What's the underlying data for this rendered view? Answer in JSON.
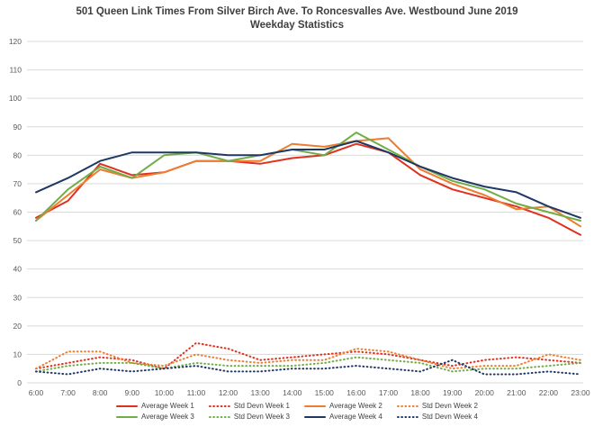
{
  "chart_data": {
    "type": "line",
    "title": "501 Queen Link Times From Silver Birch Ave. To Roncesvalles Ave. Westbound June 2019",
    "subtitle": "Weekday Statistics",
    "xlabel": "",
    "ylabel": "",
    "ylim": [
      0,
      120
    ],
    "ytick_step": 10,
    "grid": true,
    "legend_position": "bottom",
    "categories": [
      "6:00",
      "7:00",
      "8:00",
      "9:00",
      "10:00",
      "11:00",
      "12:00",
      "13:00",
      "14:00",
      "15:00",
      "16:00",
      "17:00",
      "18:00",
      "19:00",
      "20:00",
      "21:00",
      "22:00",
      "23:00"
    ],
    "series": [
      {
        "name": "Average Week 1",
        "color": "#e0301e",
        "style": "solid",
        "values": [
          58,
          64,
          77,
          73,
          74,
          78,
          78,
          77,
          79,
          80,
          84,
          81,
          73,
          68,
          65,
          62,
          58,
          52
        ]
      },
      {
        "name": "Std Devn Week 1",
        "color": "#e0301e",
        "style": "dotted",
        "values": [
          5,
          7,
          9,
          8,
          5,
          14,
          12,
          8,
          9,
          10,
          11,
          10,
          8,
          6,
          8,
          9,
          8,
          7
        ]
      },
      {
        "name": "Average Week 2",
        "color": "#ed7d31",
        "style": "solid",
        "values": [
          57,
          66,
          75,
          72,
          74,
          78,
          78,
          78,
          84,
          83,
          85,
          86,
          75,
          70,
          66,
          61,
          62,
          55
        ]
      },
      {
        "name": "Std Devn Week 2",
        "color": "#ed7d31",
        "style": "dotted",
        "values": [
          5,
          11,
          11,
          7,
          6,
          10,
          8,
          7,
          8,
          8,
          12,
          11,
          8,
          5,
          6,
          6,
          10,
          8
        ]
      },
      {
        "name": "Average Week 3",
        "color": "#70ad47",
        "style": "solid",
        "values": [
          57,
          68,
          76,
          72,
          80,
          81,
          78,
          80,
          82,
          80,
          88,
          82,
          76,
          71,
          68,
          63,
          60,
          57
        ]
      },
      {
        "name": "Std Devn Week 3",
        "color": "#70ad47",
        "style": "dotted",
        "values": [
          4,
          6,
          7,
          7,
          5,
          7,
          6,
          6,
          6,
          7,
          9,
          8,
          7,
          4,
          5,
          5,
          6,
          7
        ]
      },
      {
        "name": "Average Week 4",
        "color": "#1f3864",
        "style": "solid",
        "values": [
          67,
          72,
          78,
          81,
          81,
          81,
          80,
          80,
          82,
          82,
          85,
          81,
          76,
          72,
          69,
          67,
          62,
          58
        ]
      },
      {
        "name": "Std Devn Week 4",
        "color": "#1f3864",
        "style": "dotted",
        "values": [
          4,
          3,
          5,
          4,
          5,
          6,
          4,
          4,
          5,
          5,
          6,
          5,
          4,
          8,
          3,
          3,
          4,
          3
        ]
      }
    ],
    "colors": {
      "gridline": "#d9d9d9",
      "tick_label": "#595959",
      "title_text": "#3f3f3f",
      "legend_text": "#404040",
      "background": "#ffffff"
    }
  }
}
